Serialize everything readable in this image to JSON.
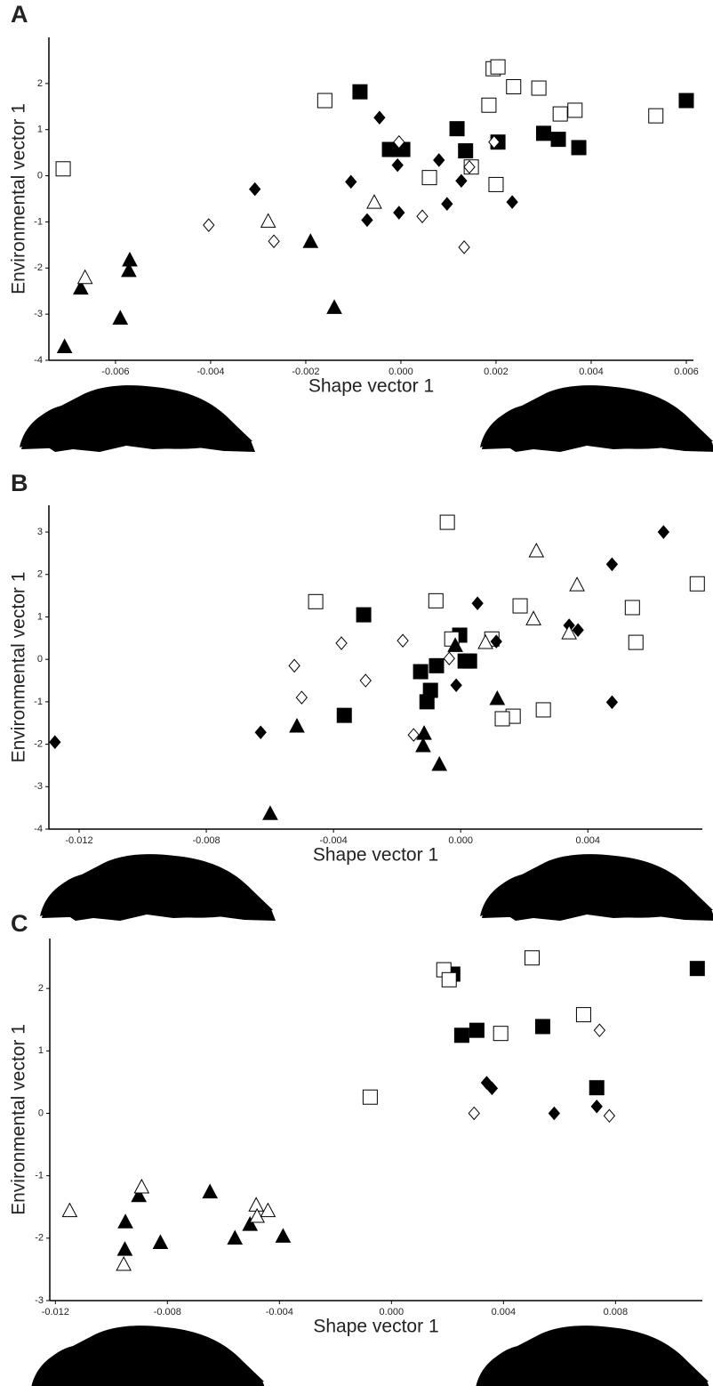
{
  "chart_data": [
    {
      "type": "scatter",
      "panel_label": "A",
      "xlabel": "Shape vector 1",
      "ylabel": "Environmental vector 1",
      "xlim": [
        -0.0074,
        0.00615
      ],
      "ylim": [
        -4,
        3
      ],
      "xticks": [
        -0.006,
        -0.004,
        -0.002,
        {
          "value": 0,
          "label": "0.000"
        },
        0.002,
        0.004,
        0.006
      ],
      "yticks": [
        -4,
        -3,
        -2,
        -1,
        0,
        1,
        2
      ],
      "series": [
        {
          "marker": "square",
          "filled": true,
          "color": "#000000",
          "x": [
            -0.00086,
            -0.00024,
            4e-05,
            0.00118,
            0.00136,
            0.00204,
            0.003,
            0.00331,
            0.00374,
            0.006
          ],
          "values": [
            1.82,
            0.57,
            0.57,
            1.02,
            0.54,
            0.73,
            0.92,
            0.79,
            0.61,
            1.63
          ]
        },
        {
          "marker": "square",
          "filled": false,
          "color": "#000000",
          "x": [
            -0.0071,
            -0.0016,
            0.00194,
            0.00204,
            0.00237,
            0.0029,
            0.00185,
            0.00335,
            0.00366,
            0.00536,
            0.0006,
            0.00148,
            0.002
          ],
          "values": [
            0.15,
            1.63,
            2.32,
            2.36,
            1.93,
            1.9,
            1.53,
            1.34,
            1.42,
            1.3,
            -0.04,
            0.19,
            -0.19
          ]
        },
        {
          "marker": "diamond",
          "filled": true,
          "color": "#000000",
          "x": [
            -0.00045,
            -0.00307,
            -0.00105,
            -7e-05,
            0.0008,
            0.00127,
            -0.00071,
            -4e-05,
            0.00097,
            0.00234
          ],
          "values": [
            1.26,
            -0.29,
            -0.13,
            0.23,
            0.34,
            -0.11,
            -0.96,
            -0.8,
            -0.61,
            -0.57
          ]
        },
        {
          "marker": "diamond",
          "filled": false,
          "color": "#000000",
          "x": [
            -4e-05,
            -0.00404,
            -0.00267,
            0.00045,
            0.00133,
            0.00196,
            0.00144
          ],
          "values": [
            0.73,
            -1.07,
            -1.42,
            -0.88,
            -1.55,
            0.73,
            0.19
          ]
        },
        {
          "marker": "triangle",
          "filled": true,
          "color": "#000000",
          "x": [
            -0.00707,
            -0.00673,
            -0.0057,
            -0.00572,
            -0.0059,
            -0.0019,
            -0.0014
          ],
          "values": [
            -3.72,
            -2.45,
            -1.84,
            -2.07,
            -3.1,
            -1.44,
            -2.87
          ]
        },
        {
          "marker": "triangle",
          "filled": false,
          "color": "#000000",
          "x": [
            -0.00664,
            -0.00279,
            -0.00056
          ],
          "values": [
            -2.22,
            -1.0,
            -0.59
          ]
        }
      ]
    },
    {
      "type": "scatter",
      "panel_label": "B",
      "xlabel": "Shape vector 1",
      "ylabel": "Environmental vector 1",
      "xlim": [
        -0.01295,
        0.0076
      ],
      "ylim": [
        -4,
        3.63
      ],
      "xticks": [
        -0.012,
        -0.008,
        -0.004,
        {
          "value": 0,
          "label": "0.000"
        },
        0.004
      ],
      "yticks": [
        -4,
        -3,
        -2,
        -1,
        0,
        1,
        2,
        3
      ],
      "series": [
        {
          "marker": "square",
          "filled": true,
          "color": "#000000",
          "x": [
            -0.00305,
            -0.00366,
            -0.00126,
            -0.00076,
            -3e-05,
            0.00014,
            0.00028,
            -0.00095,
            -0.00106
          ],
          "values": [
            1.05,
            -1.32,
            -0.29,
            -0.15,
            0.57,
            -0.04,
            -0.04,
            -0.73,
            -1.0
          ]
        },
        {
          "marker": "square",
          "filled": false,
          "color": "#000000",
          "x": [
            -0.00042,
            -0.00456,
            -0.00078,
            -0.00028,
            0.00098,
            0.00187,
            0.0026,
            0.00165,
            0.00131,
            0.0054,
            0.00551,
            0.00744
          ],
          "values": [
            3.23,
            1.36,
            1.38,
            0.48,
            0.48,
            1.26,
            -1.19,
            -1.34,
            -1.4,
            1.22,
            0.4,
            1.78
          ]
        },
        {
          "marker": "diamond",
          "filled": true,
          "color": "#000000",
          "x": [
            -0.01276,
            -0.00629,
            0.00053,
            0.00112,
            -0.00014,
            0.00341,
            0.00369,
            0.00476,
            0.00638,
            0.00476
          ],
          "values": [
            -1.95,
            -1.72,
            1.32,
            0.42,
            -0.61,
            0.8,
            0.69,
            2.24,
            3.0,
            -1.01
          ]
        },
        {
          "marker": "diamond",
          "filled": false,
          "color": "#000000",
          "x": [
            -0.00182,
            -0.00036,
            -0.00375,
            -0.00523,
            -0.00299,
            -0.005,
            -0.00148
          ],
          "values": [
            0.44,
            0.02,
            0.38,
            -0.15,
            -0.5,
            -0.9,
            -1.78
          ]
        },
        {
          "marker": "triangle",
          "filled": true,
          "color": "#000000",
          "x": [
            -0.00599,
            -0.00515,
            -0.00115,
            -0.00067,
            -0.00118,
            -0.00017,
            0.00115
          ],
          "values": [
            -3.65,
            -1.59,
            -1.76,
            -2.49,
            -2.05,
            0.31,
            -0.94
          ]
        },
        {
          "marker": "triangle",
          "filled": false,
          "color": "#000000",
          "x": [
            0.00238,
            0.00366,
            0.00229,
            0.00341,
            0.00078
          ],
          "values": [
            2.54,
            1.74,
            0.94,
            0.61,
            0.38
          ]
        }
      ]
    },
    {
      "type": "scatter",
      "panel_label": "C",
      "xlabel": "Shape vector 1",
      "ylabel": "Environmental vector 1",
      "xlim": [
        -0.0122,
        0.0111
      ],
      "ylim": [
        -3,
        2.8
      ],
      "xticks": [
        -0.012,
        -0.008,
        -0.004,
        {
          "value": 0,
          "label": "0.000"
        },
        0.004,
        0.008
      ],
      "yticks": [
        -3,
        -2,
        -1,
        0,
        1,
        2
      ],
      "series": [
        {
          "marker": "square",
          "filled": true,
          "color": "#000000",
          "x": [
            0.00219,
            0.00251,
            0.00305,
            0.0054,
            0.00733,
            0.01092
          ],
          "values": [
            2.23,
            1.25,
            1.33,
            1.39,
            0.41,
            2.32
          ]
        },
        {
          "marker": "square",
          "filled": false,
          "color": "#000000",
          "x": [
            0.00187,
            0.00206,
            0.00502,
            0.0039,
            0.00686,
            -0.00076
          ],
          "values": [
            2.3,
            2.14,
            2.49,
            1.28,
            1.58,
            0.26
          ]
        },
        {
          "marker": "diamond",
          "filled": true,
          "color": "#000000",
          "x": [
            0.0034,
            0.00359,
            0.00581,
            0.00733
          ],
          "values": [
            0.49,
            0.4,
            0.0,
            0.11
          ]
        },
        {
          "marker": "diamond",
          "filled": false,
          "color": "#000000",
          "x": [
            0.00295,
            0.00743,
            0.00778
          ],
          "values": [
            0.0,
            1.33,
            -0.04
          ]
        },
        {
          "marker": "triangle",
          "filled": true,
          "color": "#000000",
          "x": [
            -0.00902,
            -0.0095,
            -0.00952,
            -0.00825,
            -0.00648,
            -0.00559,
            -0.00505,
            -0.00387
          ],
          "values": [
            -1.33,
            -1.75,
            -2.19,
            -2.08,
            -1.27,
            -2.01,
            -1.79,
            -1.98
          ]
        },
        {
          "marker": "triangle",
          "filled": false,
          "color": "#000000",
          "x": [
            -0.01149,
            -0.00892,
            -0.00956,
            -0.00483,
            -0.0048,
            -0.00441
          ],
          "values": [
            -1.57,
            -1.19,
            -2.43,
            -1.48,
            -1.66,
            -1.57
          ]
        }
      ]
    }
  ]
}
